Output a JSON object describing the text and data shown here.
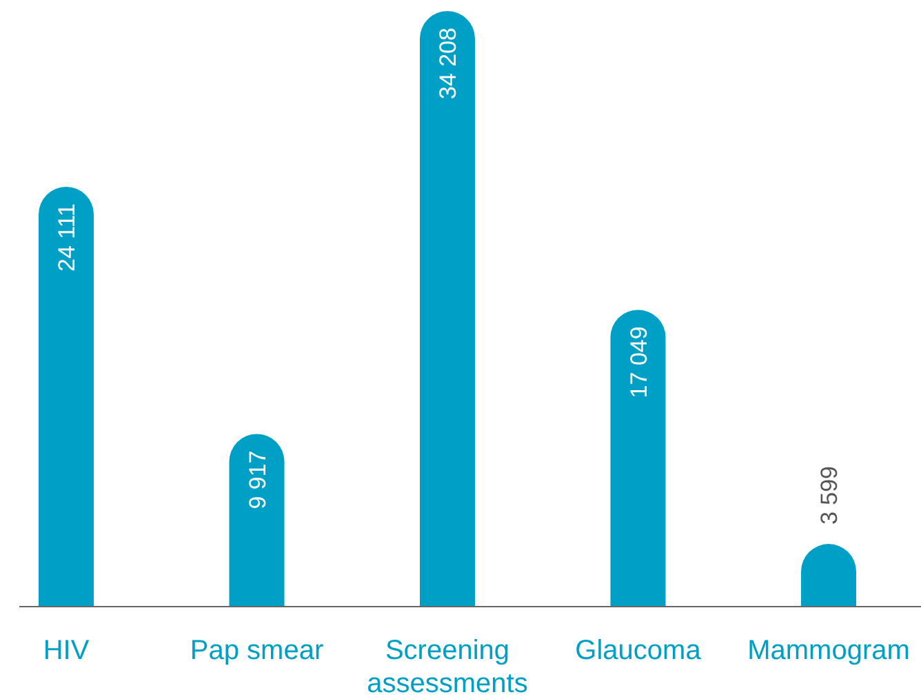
{
  "chart_data": {
    "type": "bar",
    "categories": [
      "HIV",
      "Pap smear",
      "Screening assessments",
      "Glaucoma",
      "Mammogram"
    ],
    "values": [
      24111,
      9917,
      34208,
      17049,
      3599
    ],
    "value_labels": [
      "24 111",
      "9 917",
      "34 208",
      "17 049",
      "3 599"
    ],
    "color": "#00a0c6"
  }
}
